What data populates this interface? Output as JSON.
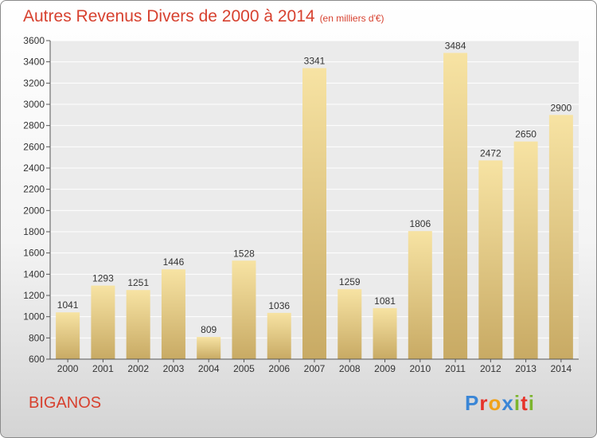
{
  "title": "Autres Revenus Divers de 2000 à 2014",
  "unit_note": "(en milliers d'€)",
  "city": "BIGANOS",
  "brand": {
    "letters": [
      {
        "ch": "P",
        "color": "#3a86d6"
      },
      {
        "ch": "r",
        "color": "#e6332a"
      },
      {
        "ch": "o",
        "color": "#f0a21b"
      },
      {
        "ch": "x",
        "color": "#3a86d6"
      },
      {
        "ch": "i",
        "color": "#7cb52e"
      },
      {
        "ch": "t",
        "color": "#e6332a"
      },
      {
        "ch": "i",
        "color": "#7cb52e"
      }
    ]
  },
  "colors": {
    "title": "#d7412f",
    "bar_light": "#f7e3a3",
    "bar_dark": "#c8aa64",
    "grid": "#ffffff"
  },
  "chart_data": {
    "type": "bar",
    "title": "Autres Revenus Divers de 2000 à 2014",
    "xlabel": "",
    "ylabel": "",
    "categories": [
      "2000",
      "2001",
      "2002",
      "2003",
      "2004",
      "2005",
      "2006",
      "2007",
      "2008",
      "2009",
      "2010",
      "2011",
      "2012",
      "2013",
      "2014"
    ],
    "values": [
      1041,
      1293,
      1251,
      1446,
      809,
      1528,
      1036,
      3341,
      1259,
      1081,
      1806,
      3484,
      2472,
      2650,
      2900
    ],
    "ylim": [
      600,
      3600
    ],
    "yticks": [
      600,
      800,
      1000,
      1200,
      1400,
      1600,
      1800,
      2000,
      2200,
      2400,
      2600,
      2800,
      3000,
      3200,
      3400,
      3600
    ],
    "grid": true,
    "data_labels": true
  }
}
